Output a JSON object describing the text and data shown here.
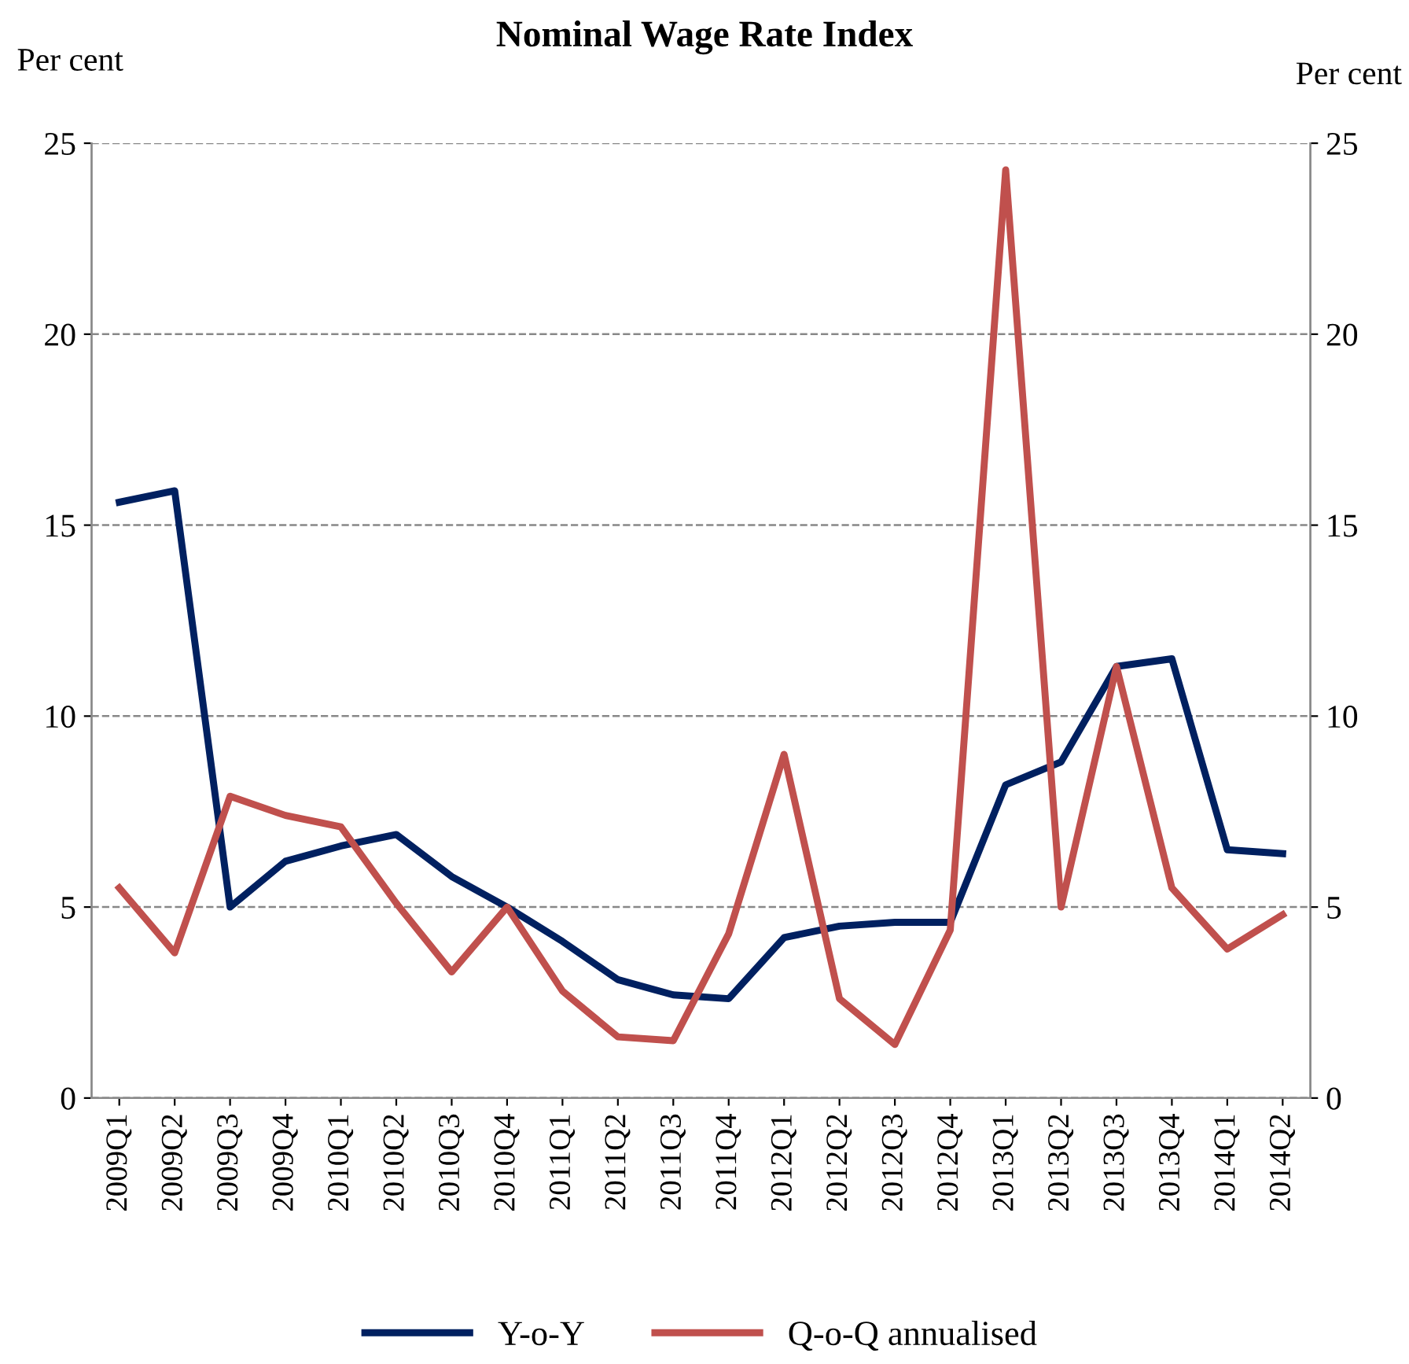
{
  "chart_data": {
    "type": "line",
    "title": "Nominal Wage Rate Index",
    "ylabel": "Per cent",
    "y2label": "Per cent",
    "categories": [
      "2009Q1",
      "2009Q2",
      "2009Q3",
      "2009Q4",
      "2010Q1",
      "2010Q2",
      "2010Q3",
      "2010Q4",
      "2011Q1",
      "2011Q2",
      "2011Q3",
      "2011Q4",
      "2012Q1",
      "2012Q2",
      "2012Q3",
      "2012Q4",
      "2013Q1",
      "2013Q2",
      "2013Q3",
      "2013Q4",
      "2014Q1",
      "2014Q2"
    ],
    "series": [
      {
        "name": "Y-o-Y",
        "color": "#002060",
        "values": [
          15.6,
          15.9,
          5.0,
          6.2,
          6.6,
          6.9,
          5.8,
          5.0,
          4.1,
          3.1,
          2.7,
          2.6,
          4.2,
          4.5,
          4.6,
          4.6,
          8.2,
          8.8,
          11.3,
          11.5,
          6.5,
          6.4
        ]
      },
      {
        "name": "Q-o-Q annualised",
        "color": "#c0504d",
        "values": [
          5.5,
          3.8,
          7.9,
          7.4,
          7.1,
          5.1,
          3.3,
          5.0,
          2.8,
          1.6,
          1.5,
          4.3,
          9.0,
          2.6,
          1.4,
          4.4,
          24.3,
          5.0,
          11.3,
          5.5,
          3.9,
          4.8
        ]
      }
    ],
    "ylim": [
      0,
      25
    ],
    "yticks": [
      0,
      5,
      10,
      15,
      20,
      25
    ],
    "y2lim": [
      0,
      25
    ],
    "y2ticks": [
      0,
      5,
      10,
      15,
      20,
      25
    ],
    "grid": "y",
    "legend": "bottom",
    "marker": "none",
    "line_style": "solid"
  }
}
